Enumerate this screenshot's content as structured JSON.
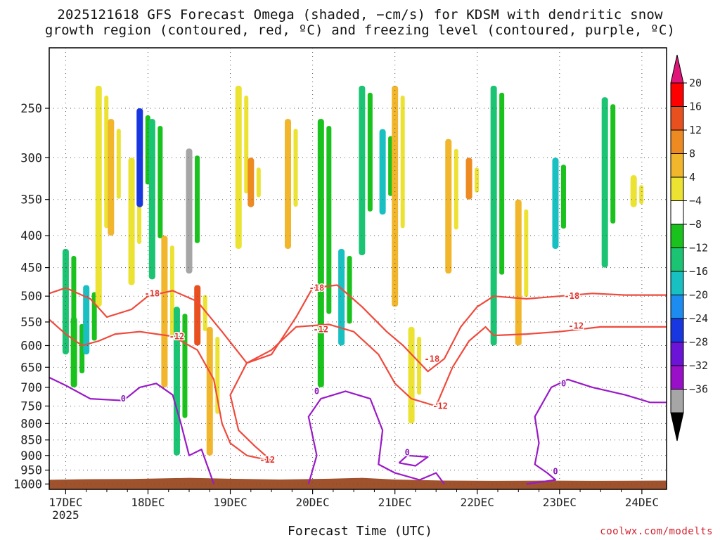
{
  "chart_data": {
    "type": "heatmap",
    "title": [
      "2025121618 GFS Forecast Omega (shaded, −cm/s) for KDSM with dendritic snow",
      "growth region (contoured, red, ºC) and freezing level (contoured, purple, ºC)"
    ],
    "xlabel": "Forecast Time (UTC)",
    "ylabel": "",
    "credit": "coolwx.com/modelts",
    "x_unit": "day",
    "x_range": [
      16.8,
      24.3
    ],
    "x_ticks": [
      {
        "value": 17,
        "label": "17DEC",
        "sublabel": "2025"
      },
      {
        "value": 18,
        "label": "18DEC"
      },
      {
        "value": 19,
        "label": "19DEC"
      },
      {
        "value": 20,
        "label": "20DEC"
      },
      {
        "value": 21,
        "label": "21DEC"
      },
      {
        "value": 22,
        "label": "22DEC"
      },
      {
        "value": 23,
        "label": "23DEC"
      },
      {
        "value": 24,
        "label": "24DEC"
      }
    ],
    "y_unit": "hPa",
    "y_scale": "log",
    "y_range": [
      200,
      1020
    ],
    "y_ticks": [
      250,
      300,
      350,
      400,
      450,
      500,
      550,
      600,
      650,
      700,
      750,
      800,
      850,
      900,
      950,
      1000
    ],
    "colorbar": {
      "labels": [
        "20",
        "16",
        "12",
        "8",
        "4",
        "−4",
        "−8",
        "−12",
        "−16",
        "−20",
        "−24",
        "−28",
        "−32",
        "−36"
      ],
      "colors": [
        "#ff0000",
        "#e8501f",
        "#ee8a22",
        "#f1b62c",
        "#ece232",
        "#ffffff",
        "#19c21c",
        "#1ac472",
        "#18c0c2",
        "#1d8cf0",
        "#1837e0",
        "#6b14d7",
        "#9a10c8",
        "#a6a6a6"
      ],
      "top_arrow": "#e0157a",
      "bottom_arrow": "#000000"
    },
    "shading": {
      "description": "omega values (-cm/s) by time and pressure",
      "cells": [
        {
          "t": 17.0,
          "p0": 420,
          "p1": 620,
          "v": -10
        },
        {
          "t": 17.1,
          "p0": 540,
          "p1": 700,
          "v": -8
        },
        {
          "t": 17.25,
          "p0": 480,
          "p1": 620,
          "v": -14
        },
        {
          "t": 17.4,
          "p0": 230,
          "p1": 520,
          "v": 6
        },
        {
          "t": 17.55,
          "p0": 260,
          "p1": 400,
          "v": 10
        },
        {
          "t": 17.8,
          "p0": 300,
          "p1": 480,
          "v": 6
        },
        {
          "t": 17.9,
          "p0": 250,
          "p1": 360,
          "v": -24
        },
        {
          "t": 18.05,
          "p0": 260,
          "p1": 470,
          "v": -10
        },
        {
          "t": 18.2,
          "p0": 400,
          "p1": 700,
          "v": 8
        },
        {
          "t": 18.35,
          "p0": 520,
          "p1": 900,
          "v": -10
        },
        {
          "t": 18.5,
          "p0": 290,
          "p1": 460,
          "v": -36
        },
        {
          "t": 18.6,
          "p0": 480,
          "p1": 600,
          "v": 18
        },
        {
          "t": 18.75,
          "p0": 560,
          "p1": 900,
          "v": 10
        },
        {
          "t": 19.1,
          "p0": 230,
          "p1": 420,
          "v": 6
        },
        {
          "t": 19.25,
          "p0": 300,
          "p1": 360,
          "v": 14
        },
        {
          "t": 19.7,
          "p0": 260,
          "p1": 420,
          "v": 8
        },
        {
          "t": 20.1,
          "p0": 260,
          "p1": 700,
          "v": -8
        },
        {
          "t": 20.35,
          "p0": 420,
          "p1": 600,
          "v": -16
        },
        {
          "t": 20.6,
          "p0": 230,
          "p1": 430,
          "v": -10
        },
        {
          "t": 20.85,
          "p0": 270,
          "p1": 370,
          "v": -14
        },
        {
          "t": 21.0,
          "p0": 230,
          "p1": 520,
          "v": 8
        },
        {
          "t": 21.2,
          "p0": 560,
          "p1": 800,
          "v": 6
        },
        {
          "t": 21.65,
          "p0": 280,
          "p1": 460,
          "v": 10
        },
        {
          "t": 21.9,
          "p0": 300,
          "p1": 350,
          "v": 12
        },
        {
          "t": 22.2,
          "p0": 230,
          "p1": 600,
          "v": -12
        },
        {
          "t": 22.5,
          "p0": 350,
          "p1": 600,
          "v": 8
        },
        {
          "t": 22.95,
          "p0": 300,
          "p1": 420,
          "v": -16
        },
        {
          "t": 23.55,
          "p0": 240,
          "p1": 450,
          "v": -12
        },
        {
          "t": 23.9,
          "p0": 320,
          "p1": 360,
          "v": 6
        }
      ]
    },
    "contour_labels": {
      "dgz_red": [
        {
          "t": 18.05,
          "p": 495,
          "label": "-18"
        },
        {
          "t": 18.35,
          "p": 580,
          "label": "-12"
        },
        {
          "t": 20.1,
          "p": 565,
          "label": "-12"
        },
        {
          "t": 20.05,
          "p": 485,
          "label": "-18"
        },
        {
          "t": 19.45,
          "p": 915,
          "label": "-12"
        },
        {
          "t": 21.45,
          "p": 630,
          "label": "-18"
        },
        {
          "t": 21.55,
          "p": 750,
          "label": "-12"
        },
        {
          "t": 23.15,
          "p": 500,
          "label": "-18"
        },
        {
          "t": 23.2,
          "p": 558,
          "label": "-12"
        }
      ],
      "freezing_purple": [
        {
          "t": 17.7,
          "p": 730,
          "label": "0"
        },
        {
          "t": 20.05,
          "p": 710,
          "label": "0"
        },
        {
          "t": 21.15,
          "p": 890,
          "label": "0"
        },
        {
          "t": 23.05,
          "p": 690,
          "label": "0"
        },
        {
          "t": 22.95,
          "p": 955,
          "label": "0"
        }
      ]
    },
    "dgz_series": [
      {
        "name": "-18",
        "points": [
          [
            16.8,
            495
          ],
          [
            17.0,
            485
          ],
          [
            17.3,
            505
          ],
          [
            17.5,
            540
          ],
          [
            17.8,
            525
          ],
          [
            18.0,
            500
          ],
          [
            18.3,
            490
          ],
          [
            18.6,
            510
          ],
          [
            18.9,
            570
          ],
          [
            19.2,
            640
          ],
          [
            19.5,
            620
          ],
          [
            19.8,
            540
          ],
          [
            20.0,
            485
          ],
          [
            20.3,
            480
          ],
          [
            20.6,
            520
          ],
          [
            20.9,
            570
          ],
          [
            21.1,
            600
          ],
          [
            21.4,
            660
          ],
          [
            21.6,
            630
          ],
          [
            21.8,
            560
          ],
          [
            22.0,
            520
          ],
          [
            22.2,
            500
          ],
          [
            22.6,
            505
          ],
          [
            23.0,
            500
          ],
          [
            23.4,
            495
          ],
          [
            23.8,
            498
          ],
          [
            24.3,
            498
          ]
        ]
      },
      {
        "name": "-12",
        "points": [
          [
            16.8,
            545
          ],
          [
            17.0,
            575
          ],
          [
            17.2,
            600
          ],
          [
            17.4,
            590
          ],
          [
            17.6,
            575
          ],
          [
            17.9,
            570
          ],
          [
            18.3,
            580
          ],
          [
            18.6,
            610
          ],
          [
            18.8,
            680
          ],
          [
            18.9,
            800
          ],
          [
            19.0,
            860
          ],
          [
            19.2,
            900
          ],
          [
            19.5,
            918
          ],
          [
            19.3,
            870
          ],
          [
            19.1,
            820
          ],
          [
            19.0,
            720
          ],
          [
            19.2,
            640
          ],
          [
            19.5,
            610
          ],
          [
            19.8,
            560
          ],
          [
            20.2,
            555
          ],
          [
            20.5,
            570
          ],
          [
            20.8,
            620
          ],
          [
            21.0,
            690
          ],
          [
            21.2,
            730
          ],
          [
            21.5,
            750
          ],
          [
            21.7,
            650
          ],
          [
            21.9,
            590
          ],
          [
            22.1,
            560
          ],
          [
            22.2,
            578
          ],
          [
            22.6,
            575
          ],
          [
            23.0,
            570
          ],
          [
            23.5,
            560
          ],
          [
            23.9,
            560
          ],
          [
            24.3,
            560
          ]
        ]
      }
    ],
    "freezing_series": [
      {
        "name": "0-a",
        "points": [
          [
            16.8,
            675
          ],
          [
            17.0,
            695
          ],
          [
            17.3,
            730
          ],
          [
            17.7,
            735
          ],
          [
            17.9,
            700
          ],
          [
            18.1,
            690
          ],
          [
            18.3,
            720
          ],
          [
            18.4,
            800
          ],
          [
            18.5,
            900
          ],
          [
            18.65,
            880
          ],
          [
            18.8,
            1000
          ]
        ]
      },
      {
        "name": "0-b",
        "points": [
          [
            19.95,
            1000
          ],
          [
            20.05,
            900
          ],
          [
            19.95,
            780
          ],
          [
            20.1,
            730
          ],
          [
            20.4,
            710
          ],
          [
            20.7,
            730
          ],
          [
            20.85,
            820
          ],
          [
            20.8,
            930
          ],
          [
            21.0,
            960
          ],
          [
            21.3,
            985
          ],
          [
            21.5,
            960
          ],
          [
            21.6,
            1000
          ]
        ]
      },
      {
        "name": "0-c",
        "points": [
          [
            21.05,
            925
          ],
          [
            21.15,
            900
          ],
          [
            21.4,
            905
          ],
          [
            21.25,
            935
          ],
          [
            21.05,
            925
          ]
        ]
      },
      {
        "name": "0-d",
        "points": [
          [
            22.6,
            1000
          ],
          [
            22.95,
            985
          ],
          [
            22.85,
            960
          ],
          [
            22.7,
            930
          ],
          [
            22.75,
            860
          ],
          [
            22.7,
            780
          ],
          [
            22.9,
            700
          ],
          [
            23.1,
            680
          ],
          [
            23.4,
            700
          ],
          [
            23.8,
            720
          ],
          [
            24.1,
            740
          ],
          [
            24.3,
            740
          ]
        ]
      }
    ]
  }
}
